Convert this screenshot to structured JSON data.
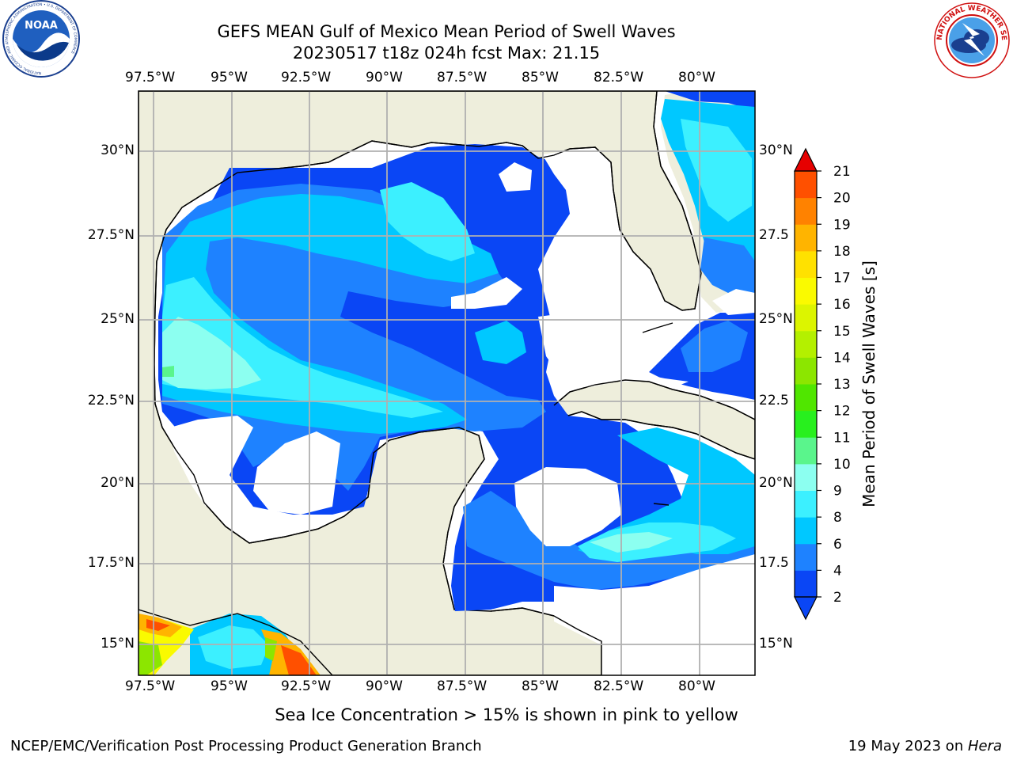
{
  "title": {
    "line1": "GEFS MEAN Gulf of Mexico Mean Period of Swell Waves",
    "line2": "20230517 t18z 024h fcst   Max: 21.15"
  },
  "map": {
    "lon_labels": [
      "97.5°W",
      "95°W",
      "92.5°W",
      "90°W",
      "87.5°W",
      "85°W",
      "82.5°W",
      "80°W"
    ],
    "lat_labels_left": [
      "30°N",
      "27.5°N",
      "25°N",
      "22.5°N",
      "20°N",
      "17.5°N",
      "15°N"
    ],
    "lat_labels_right": [
      "30°N",
      "27.5",
      "25°N",
      "22.5",
      "20°N",
      "17.5",
      "15°N"
    ],
    "extent": {
      "lon_min": -98,
      "lon_max": -78.3,
      "lat_min": 14.1,
      "lat_max": 31.8
    },
    "colors": {
      "land": "#eeeedc",
      "ocean_nodata": "#ffffff",
      "grid": "#b0b0b0"
    }
  },
  "colorbar": {
    "label": "Mean Period of Swell Waves [s]",
    "ticks": [
      "2",
      "4",
      "6",
      "8",
      "9",
      "10",
      "11",
      "12",
      "13",
      "14",
      "15",
      "16",
      "17",
      "18",
      "19",
      "20",
      "21"
    ],
    "colors": [
      "#0a46f5",
      "#1e82ff",
      "#00c8ff",
      "#3cf0ff",
      "#8cfff0",
      "#5af58c",
      "#28f01e",
      "#50e600",
      "#8ce600",
      "#b4f000",
      "#dcf500",
      "#fafa00",
      "#ffe100",
      "#ffb400",
      "#ff8200",
      "#ff5000",
      "#ff1e00",
      "#e60000"
    ]
  },
  "note": "Sea Ice Concentration > 15% is shown in pink to yellow",
  "footer": {
    "left": "NCEP/EMC/Verification Post Processing Product Generation Branch",
    "right_date": "19 May 2023 on ",
    "right_host": "Hera"
  },
  "logos": {
    "noaa": {
      "text": "NOAA",
      "ring_text": "NATIONAL OCEANIC AND ATMOSPHERIC ADMINISTRATION • U.S. DEPARTMENT OF COMMERCE"
    },
    "nws": {
      "ring_text": "NATIONAL WEATHER SERVICE"
    }
  }
}
